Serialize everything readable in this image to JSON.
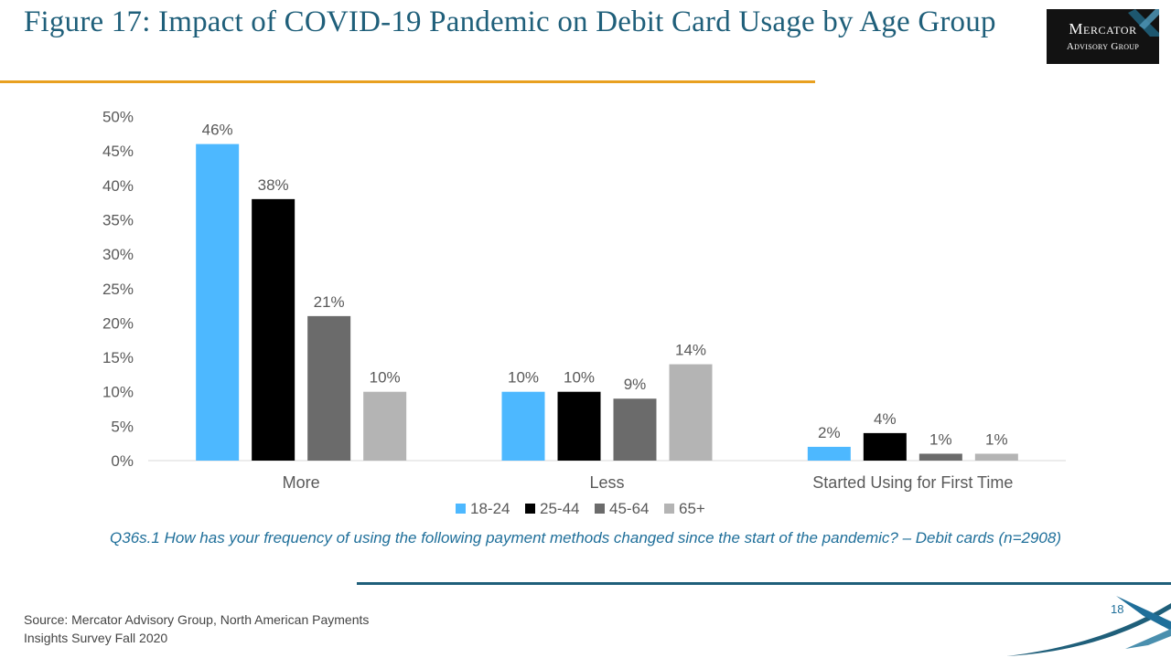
{
  "slide": {
    "title": "Figure 17: Impact of COVID-19 Pandemic on Debit Card Usage by Age Group",
    "question": "Q36s.1 How has your frequency of using the following payment methods changed since the start of the pandemic? – Debit cards (n=2908)",
    "source": "Source: Mercator Advisory Group, North American Payments Insights Survey Fall 2020",
    "page_number": "18",
    "logo": {
      "line1": "Mercator",
      "line2": "Advisory Group"
    }
  },
  "colors": {
    "title": "#1f5f7a",
    "title_rule": "#e8a020",
    "question": "#1f6f9a",
    "footer_rule": "#1f5f7a"
  },
  "chart_data": {
    "type": "bar",
    "categories": [
      "More",
      "Less",
      "Started Using for First Time"
    ],
    "series": [
      {
        "name": "18-24",
        "values": [
          46,
          10,
          2
        ],
        "color": "#4db8ff"
      },
      {
        "name": "25-44",
        "values": [
          38,
          10,
          4
        ],
        "color": "#000000"
      },
      {
        "name": "45-64",
        "values": [
          21,
          9,
          1
        ],
        "color": "#6b6b6b"
      },
      {
        "name": "65+",
        "values": [
          10,
          14,
          1
        ],
        "color": "#b4b4b4"
      }
    ],
    "data_labels": [
      [
        "46%",
        "10%",
        "2%"
      ],
      [
        "38%",
        "10%",
        "4%"
      ],
      [
        "21%",
        "9%",
        "1%"
      ],
      [
        "10%",
        "14%",
        "1%"
      ]
    ],
    "y_ticks": [
      "0%",
      "5%",
      "10%",
      "15%",
      "20%",
      "25%",
      "30%",
      "35%",
      "40%",
      "45%",
      "50%"
    ],
    "ylim": [
      0,
      50
    ],
    "grid": false,
    "legend_position": "bottom"
  }
}
